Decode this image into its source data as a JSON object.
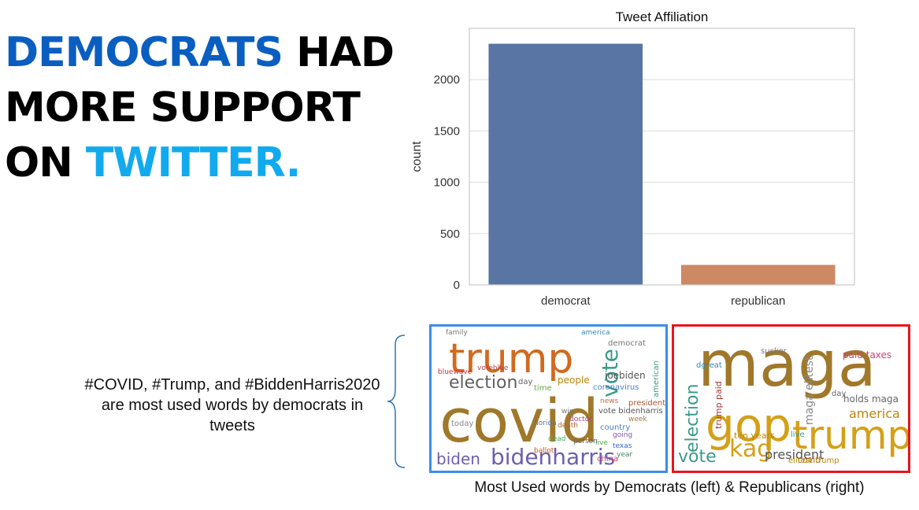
{
  "headline": {
    "part1": "DEMOCRATS",
    "part2": " HAD MORE SUPPORT ON ",
    "part3": "TWITTER.",
    "colors": {
      "democrats": "#0a5ec0",
      "twitter": "#11aaee"
    }
  },
  "chart_data": {
    "type": "bar",
    "title": "Tweet Affiliation",
    "xlabel": "",
    "ylabel": "count",
    "categories": [
      "democrat",
      "republican"
    ],
    "values": [
      2350,
      195
    ],
    "colors": [
      "#5975a4",
      "#cc8963"
    ],
    "ylim": [
      0,
      2500
    ],
    "yticks": [
      0,
      500,
      1000,
      1500,
      2000
    ],
    "grid": true
  },
  "note": "#COVID, #Trump, and #BiddenHarris2020 are most used words by democrats in tweets",
  "wordclouds": {
    "caption": "Most Used words by Democrats (left) & Republicans (right)",
    "left_border_color": "#3b8ee8",
    "right_border_color": "#e8141d",
    "democrat_words": [
      "trump",
      "covid",
      "bidenharris",
      "election",
      "vote",
      "biden",
      "people",
      "joebiden",
      "coronavirus",
      "democrat",
      "american",
      "country",
      "today",
      "day",
      "china",
      "time",
      "vote bidenharris",
      "president",
      "texas",
      "family",
      "america",
      "voteblue",
      "bluewave",
      "dead",
      "death",
      "ballot",
      "doctor",
      "florida",
      "win",
      "live",
      "news",
      "going",
      "person",
      "year",
      "week"
    ],
    "republican_words": [
      "maga",
      "gop",
      "trump",
      "kag",
      "vote",
      "election",
      "president",
      "america",
      "holds maga",
      "maga elitest",
      "paid taxes",
      "ten years",
      "covid",
      "trump paid",
      "dgreat",
      "elitest trump",
      "sucker",
      "day",
      "live"
    ]
  }
}
